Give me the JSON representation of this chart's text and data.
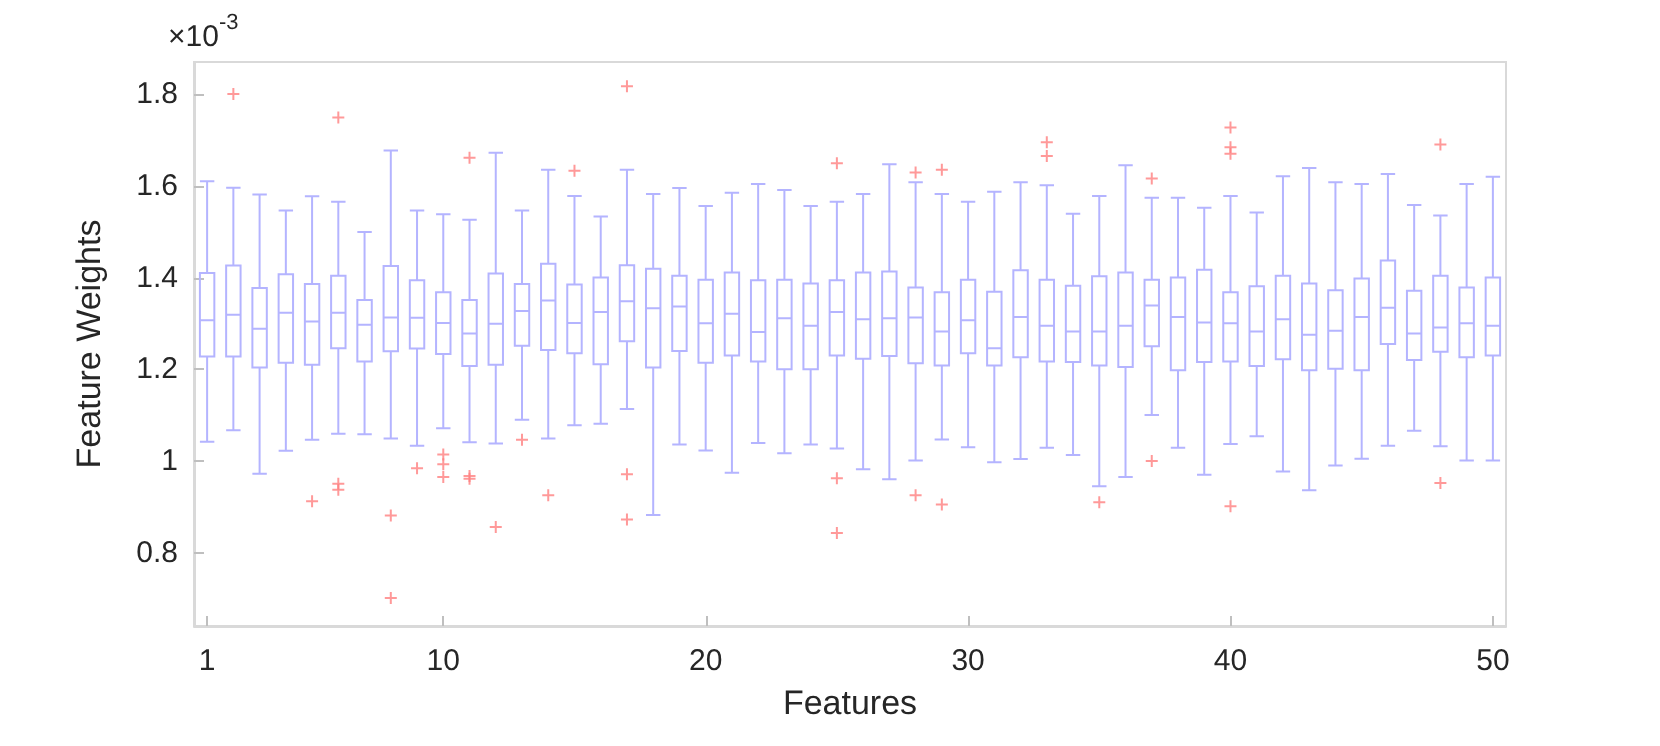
{
  "chart_data": {
    "type": "box",
    "xlabel": "Features",
    "ylabel": "Feature Weights",
    "annotations": [
      "×10$^{-3}$"
    ],
    "categories": [
      "1",
      null,
      null,
      null,
      null,
      null,
      null,
      null,
      null,
      "10",
      null,
      null,
      null,
      null,
      null,
      null,
      null,
      null,
      null,
      "20",
      null,
      null,
      null,
      null,
      null,
      null,
      null,
      null,
      null,
      "30",
      null,
      null,
      null,
      null,
      null,
      null,
      null,
      null,
      null,
      "40",
      null,
      null,
      null,
      null,
      null,
      null,
      null,
      null,
      null,
      "50"
    ],
    "ylim": [
      0.64,
      1.87
    ],
    "yticks": [
      0.8,
      1,
      1.2,
      1.4,
      1.6,
      1.8
    ],
    "series": [
      {
        "color": "#b4b4ff",
        "boxes": [
          {
            "low": 1.042,
            "q1": 1.228,
            "median": 1.307,
            "q3": 1.41,
            "high": 1.61
          },
          {
            "low": 1.067,
            "q1": 1.228,
            "median": 1.319,
            "q3": 1.426,
            "high": 1.596,
            "outliers": [
              1.8
            ]
          },
          {
            "low": 0.972,
            "q1": 1.204,
            "median": 1.288,
            "q3": 1.377,
            "high": 1.581
          },
          {
            "low": 1.022,
            "q1": 1.214,
            "median": 1.323,
            "q3": 1.407,
            "high": 1.546
          },
          {
            "low": 1.046,
            "q1": 1.21,
            "median": 1.304,
            "q3": 1.386,
            "high": 1.577,
            "outliers": [
              0.912
            ]
          },
          {
            "low": 1.059,
            "q1": 1.246,
            "median": 1.323,
            "q3": 1.404,
            "high": 1.565,
            "outliers": [
              1.749,
              0.95,
              0.937
            ]
          },
          {
            "low": 1.058,
            "q1": 1.217,
            "median": 1.297,
            "q3": 1.351,
            "high": 1.499
          },
          {
            "low": 1.049,
            "q1": 1.239,
            "median": 1.313,
            "q3": 1.425,
            "high": 1.677,
            "outliers": [
              0.881,
              0.701
            ]
          },
          {
            "low": 1.033,
            "q1": 1.245,
            "median": 1.312,
            "q3": 1.394,
            "high": 1.546,
            "outliers": [
              0.984
            ]
          },
          {
            "low": 1.071,
            "q1": 1.233,
            "median": 1.301,
            "q3": 1.368,
            "high": 1.538,
            "outliers": [
              1.014,
              0.993,
              0.965
            ]
          },
          {
            "low": 1.041,
            "q1": 1.207,
            "median": 1.278,
            "q3": 1.351,
            "high": 1.526,
            "outliers": [
              1.661,
              0.967,
              0.961
            ]
          },
          {
            "low": 1.038,
            "q1": 1.21,
            "median": 1.299,
            "q3": 1.409,
            "high": 1.672,
            "outliers": [
              0.856
            ]
          },
          {
            "low": 1.09,
            "q1": 1.251,
            "median": 1.327,
            "q3": 1.386,
            "high": 1.546,
            "outliers": [
              1.046
            ]
          },
          {
            "low": 1.049,
            "q1": 1.242,
            "median": 1.35,
            "q3": 1.43,
            "high": 1.635,
            "outliers": [
              0.925
            ]
          },
          {
            "low": 1.078,
            "q1": 1.235,
            "median": 1.301,
            "q3": 1.385,
            "high": 1.578,
            "outliers": [
              1.633
            ]
          },
          {
            "low": 1.081,
            "q1": 1.211,
            "median": 1.325,
            "q3": 1.4,
            "high": 1.533
          },
          {
            "low": 1.113,
            "q1": 1.261,
            "median": 1.348,
            "q3": 1.427,
            "high": 1.635,
            "outliers": [
              1.817,
              0.971,
              0.872
            ]
          },
          {
            "low": 0.882,
            "q1": 1.204,
            "median": 1.333,
            "q3": 1.419,
            "high": 1.582
          },
          {
            "low": 1.036,
            "q1": 1.24,
            "median": 1.337,
            "q3": 1.404,
            "high": 1.595
          },
          {
            "low": 1.023,
            "q1": 1.214,
            "median": 1.3,
            "q3": 1.395,
            "high": 1.556
          },
          {
            "low": 0.974,
            "q1": 1.23,
            "median": 1.321,
            "q3": 1.411,
            "high": 1.585
          },
          {
            "low": 1.039,
            "q1": 1.217,
            "median": 1.281,
            "q3": 1.394,
            "high": 1.604
          },
          {
            "low": 1.017,
            "q1": 1.2,
            "median": 1.311,
            "q3": 1.395,
            "high": 1.591
          },
          {
            "low": 1.036,
            "q1": 1.2,
            "median": 1.295,
            "q3": 1.387,
            "high": 1.556
          },
          {
            "low": 1.027,
            "q1": 1.23,
            "median": 1.325,
            "q3": 1.394,
            "high": 1.565,
            "outliers": [
              1.649,
              0.962,
              0.843
            ]
          },
          {
            "low": 0.982,
            "q1": 1.223,
            "median": 1.309,
            "q3": 1.411,
            "high": 1.582
          },
          {
            "low": 0.96,
            "q1": 1.229,
            "median": 1.311,
            "q3": 1.413,
            "high": 1.647
          },
          {
            "low": 1.001,
            "q1": 1.213,
            "median": 1.313,
            "q3": 1.378,
            "high": 1.608,
            "outliers": [
              1.629,
              0.925
            ]
          },
          {
            "low": 1.047,
            "q1": 1.208,
            "median": 1.282,
            "q3": 1.368,
            "high": 1.582,
            "outliers": [
              1.635,
              0.905
            ]
          },
          {
            "low": 1.03,
            "q1": 1.235,
            "median": 1.307,
            "q3": 1.395,
            "high": 1.565
          },
          {
            "low": 0.997,
            "q1": 1.208,
            "median": 1.246,
            "q3": 1.369,
            "high": 1.587
          },
          {
            "low": 1.004,
            "q1": 1.226,
            "median": 1.314,
            "q3": 1.416,
            "high": 1.608
          },
          {
            "low": 1.029,
            "q1": 1.217,
            "median": 1.295,
            "q3": 1.395,
            "high": 1.601,
            "outliers": [
              1.695,
              1.665
            ]
          },
          {
            "low": 1.013,
            "q1": 1.216,
            "median": 1.282,
            "q3": 1.382,
            "high": 1.539
          },
          {
            "low": 0.945,
            "q1": 1.208,
            "median": 1.282,
            "q3": 1.403,
            "high": 1.578,
            "outliers": [
              0.91
            ]
          },
          {
            "low": 0.965,
            "q1": 1.205,
            "median": 1.295,
            "q3": 1.411,
            "high": 1.645
          },
          {
            "low": 1.1,
            "q1": 1.25,
            "median": 1.339,
            "q3": 1.395,
            "high": 1.574,
            "outliers": [
              1.616,
              1.0
            ]
          },
          {
            "low": 1.029,
            "q1": 1.198,
            "median": 1.314,
            "q3": 1.4,
            "high": 1.574
          },
          {
            "low": 0.97,
            "q1": 1.216,
            "median": 1.302,
            "q3": 1.417,
            "high": 1.552
          },
          {
            "low": 1.037,
            "q1": 1.217,
            "median": 1.3,
            "q3": 1.368,
            "high": 1.578,
            "outliers": [
              1.727,
              1.684,
              1.67,
              0.901
            ]
          },
          {
            "low": 1.054,
            "q1": 1.207,
            "median": 1.282,
            "q3": 1.381,
            "high": 1.542
          },
          {
            "low": 0.977,
            "q1": 1.222,
            "median": 1.309,
            "q3": 1.404,
            "high": 1.621
          },
          {
            "low": 0.936,
            "q1": 1.198,
            "median": 1.275,
            "q3": 1.387,
            "high": 1.639
          },
          {
            "low": 0.99,
            "q1": 1.201,
            "median": 1.284,
            "q3": 1.372,
            "high": 1.608
          },
          {
            "low": 1.005,
            "q1": 1.198,
            "median": 1.314,
            "q3": 1.398,
            "high": 1.604
          },
          {
            "low": 1.033,
            "q1": 1.255,
            "median": 1.334,
            "q3": 1.437,
            "high": 1.626
          },
          {
            "low": 1.066,
            "q1": 1.22,
            "median": 1.278,
            "q3": 1.371,
            "high": 1.558
          },
          {
            "low": 1.032,
            "q1": 1.238,
            "median": 1.291,
            "q3": 1.404,
            "high": 1.535,
            "outliers": [
              1.69,
              0.952
            ]
          },
          {
            "low": 1.001,
            "q1": 1.226,
            "median": 1.3,
            "q3": 1.378,
            "high": 1.604
          },
          {
            "low": 1.001,
            "q1": 1.23,
            "median": 1.295,
            "q3": 1.4,
            "high": 1.62
          }
        ]
      }
    ]
  }
}
